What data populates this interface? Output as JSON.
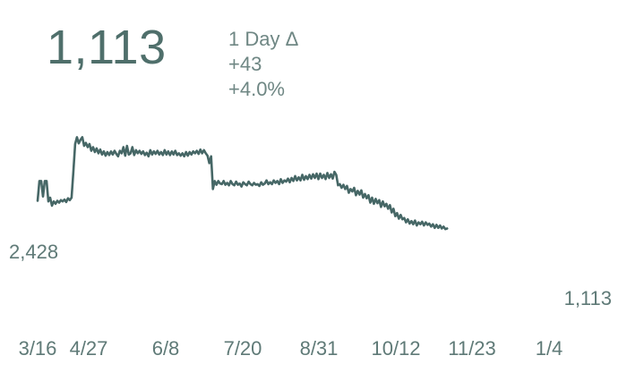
{
  "header": {
    "current_value": "1,113",
    "delta_label": "1 Day Δ",
    "delta_abs": "+43",
    "delta_pct": "+4.0%"
  },
  "colors": {
    "line": "#466766",
    "big_value": "#4f6f6b",
    "labels": "#6f8784",
    "ticks": "#5f7a77"
  },
  "chart_data": {
    "type": "line",
    "title": "",
    "xlabel": "",
    "ylabel": "",
    "x_ticks": [
      "3/16",
      "4/27",
      "6/8",
      "7/20",
      "8/31",
      "10/12",
      "11/23",
      "1/4"
    ],
    "start_label": "2,428",
    "end_label": "1,113",
    "start_value": 2428,
    "end_value": 1113,
    "ylim": [
      900,
      3800
    ],
    "x_domain_days": [
      0,
      300
    ],
    "grid": false,
    "series": [
      {
        "values": [
          [
            0,
            2430
          ],
          [
            1,
            2750
          ],
          [
            2,
            2750
          ],
          [
            3,
            2500
          ],
          [
            4,
            2750
          ],
          [
            5,
            2750
          ],
          [
            6,
            2420
          ],
          [
            7,
            2480
          ],
          [
            8,
            2350
          ],
          [
            9,
            2420
          ],
          [
            10,
            2380
          ],
          [
            11,
            2430
          ],
          [
            12,
            2400
          ],
          [
            13,
            2440
          ],
          [
            14,
            2420
          ],
          [
            15,
            2450
          ],
          [
            16,
            2410
          ],
          [
            17,
            2470
          ],
          [
            18,
            2440
          ],
          [
            19,
            2480
          ],
          [
            20,
            2900
          ],
          [
            21,
            3350
          ],
          [
            22,
            3460
          ],
          [
            23,
            3360
          ],
          [
            24,
            3420
          ],
          [
            25,
            3460
          ],
          [
            26,
            3320
          ],
          [
            27,
            3370
          ],
          [
            28,
            3300
          ],
          [
            29,
            3350
          ],
          [
            30,
            3240
          ],
          [
            31,
            3300
          ],
          [
            32,
            3220
          ],
          [
            33,
            3280
          ],
          [
            34,
            3200
          ],
          [
            35,
            3260
          ],
          [
            36,
            3180
          ],
          [
            37,
            3230
          ],
          [
            38,
            3160
          ],
          [
            39,
            3220
          ],
          [
            40,
            3170
          ],
          [
            41,
            3230
          ],
          [
            42,
            3180
          ],
          [
            43,
            3240
          ],
          [
            44,
            3190
          ],
          [
            45,
            3150
          ],
          [
            46,
            3240
          ],
          [
            47,
            3200
          ],
          [
            48,
            3300
          ],
          [
            49,
            3160
          ],
          [
            50,
            3320
          ],
          [
            51,
            3180
          ],
          [
            52,
            3200
          ],
          [
            53,
            3300
          ],
          [
            54,
            3170
          ],
          [
            55,
            3250
          ],
          [
            56,
            3200
          ],
          [
            57,
            3240
          ],
          [
            58,
            3190
          ],
          [
            59,
            3230
          ],
          [
            60,
            3170
          ],
          [
            61,
            3210
          ],
          [
            62,
            3150
          ],
          [
            63,
            3250
          ],
          [
            64,
            3180
          ],
          [
            65,
            3230
          ],
          [
            66,
            3190
          ],
          [
            67,
            3240
          ],
          [
            68,
            3180
          ],
          [
            69,
            3220
          ],
          [
            70,
            3170
          ],
          [
            71,
            3250
          ],
          [
            72,
            3180
          ],
          [
            73,
            3230
          ],
          [
            74,
            3170
          ],
          [
            75,
            3230
          ],
          [
            76,
            3180
          ],
          [
            77,
            3240
          ],
          [
            78,
            3170
          ],
          [
            79,
            3200
          ],
          [
            80,
            3160
          ],
          [
            81,
            3200
          ],
          [
            82,
            3150
          ],
          [
            83,
            3220
          ],
          [
            84,
            3160
          ],
          [
            85,
            3220
          ],
          [
            86,
            3180
          ],
          [
            87,
            3230
          ],
          [
            88,
            3200
          ],
          [
            89,
            3240
          ],
          [
            90,
            3190
          ],
          [
            91,
            3260
          ],
          [
            92,
            3200
          ],
          [
            93,
            3250
          ],
          [
            94,
            3200
          ],
          [
            95,
            3160
          ],
          [
            96,
            3040
          ],
          [
            97,
            3150
          ],
          [
            98,
            2620
          ],
          [
            99,
            2750
          ],
          [
            100,
            2690
          ],
          [
            101,
            2750
          ],
          [
            102,
            2710
          ],
          [
            103,
            2700
          ],
          [
            104,
            2750
          ],
          [
            105,
            2690
          ],
          [
            106,
            2720
          ],
          [
            107,
            2680
          ],
          [
            108,
            2750
          ],
          [
            109,
            2700
          ],
          [
            110,
            2680
          ],
          [
            111,
            2740
          ],
          [
            112,
            2690
          ],
          [
            113,
            2710
          ],
          [
            114,
            2660
          ],
          [
            115,
            2730
          ],
          [
            116,
            2700
          ],
          [
            117,
            2680
          ],
          [
            118,
            2740
          ],
          [
            119,
            2700
          ],
          [
            120,
            2680
          ],
          [
            121,
            2720
          ],
          [
            122,
            2690
          ],
          [
            123,
            2700
          ],
          [
            124,
            2670
          ],
          [
            125,
            2730
          ],
          [
            126,
            2690
          ],
          [
            127,
            2710
          ],
          [
            128,
            2760
          ],
          [
            129,
            2700
          ],
          [
            130,
            2730
          ],
          [
            131,
            2700
          ],
          [
            132,
            2760
          ],
          [
            133,
            2720
          ],
          [
            134,
            2750
          ],
          [
            135,
            2700
          ],
          [
            136,
            2780
          ],
          [
            137,
            2720
          ],
          [
            138,
            2760
          ],
          [
            139,
            2740
          ],
          [
            140,
            2790
          ],
          [
            141,
            2730
          ],
          [
            142,
            2800
          ],
          [
            143,
            2750
          ],
          [
            144,
            2830
          ],
          [
            145,
            2760
          ],
          [
            146,
            2810
          ],
          [
            147,
            2760
          ],
          [
            148,
            2850
          ],
          [
            149,
            2770
          ],
          [
            150,
            2830
          ],
          [
            151,
            2780
          ],
          [
            152,
            2850
          ],
          [
            153,
            2790
          ],
          [
            154,
            2860
          ],
          [
            155,
            2800
          ],
          [
            156,
            2870
          ],
          [
            157,
            2780
          ],
          [
            158,
            2870
          ],
          [
            159,
            2800
          ],
          [
            160,
            2850
          ],
          [
            161,
            2780
          ],
          [
            162,
            2880
          ],
          [
            163,
            2800
          ],
          [
            164,
            2860
          ],
          [
            165,
            2790
          ],
          [
            166,
            2900
          ],
          [
            167,
            2850
          ],
          [
            168,
            2680
          ],
          [
            169,
            2700
          ],
          [
            170,
            2640
          ],
          [
            171,
            2690
          ],
          [
            172,
            2620
          ],
          [
            173,
            2670
          ],
          [
            174,
            2560
          ],
          [
            175,
            2620
          ],
          [
            176,
            2580
          ],
          [
            177,
            2640
          ],
          [
            178,
            2520
          ],
          [
            179,
            2590
          ],
          [
            180,
            2530
          ],
          [
            181,
            2600
          ],
          [
            182,
            2480
          ],
          [
            183,
            2540
          ],
          [
            184,
            2470
          ],
          [
            185,
            2520
          ],
          [
            186,
            2400
          ],
          [
            187,
            2480
          ],
          [
            188,
            2380
          ],
          [
            189,
            2460
          ],
          [
            190,
            2390
          ],
          [
            191,
            2440
          ],
          [
            192,
            2330
          ],
          [
            193,
            2420
          ],
          [
            194,
            2340
          ],
          [
            195,
            2380
          ],
          [
            196,
            2300
          ],
          [
            197,
            2360
          ],
          [
            198,
            2240
          ],
          [
            199,
            2300
          ],
          [
            200,
            2180
          ],
          [
            201,
            2230
          ],
          [
            202,
            2140
          ],
          [
            203,
            2200
          ],
          [
            204,
            2130
          ],
          [
            205,
            2150
          ],
          [
            206,
            2080
          ],
          [
            207,
            2130
          ],
          [
            208,
            2060
          ],
          [
            209,
            2100
          ],
          [
            210,
            2050
          ],
          [
            211,
            2110
          ],
          [
            212,
            2030
          ],
          [
            213,
            2080
          ],
          [
            214,
            2050
          ],
          [
            215,
            2090
          ],
          [
            216,
            2030
          ],
          [
            217,
            2080
          ],
          [
            218,
            2040
          ],
          [
            219,
            2060
          ],
          [
            220,
            2010
          ],
          [
            221,
            2050
          ],
          [
            222,
            1990
          ],
          [
            223,
            2040
          ],
          [
            224,
            1990
          ],
          [
            225,
            2030
          ],
          [
            226,
            1980
          ],
          [
            227,
            2010
          ],
          [
            228,
            1970
          ],
          [
            229,
            1980
          ]
        ]
      }
    ]
  }
}
